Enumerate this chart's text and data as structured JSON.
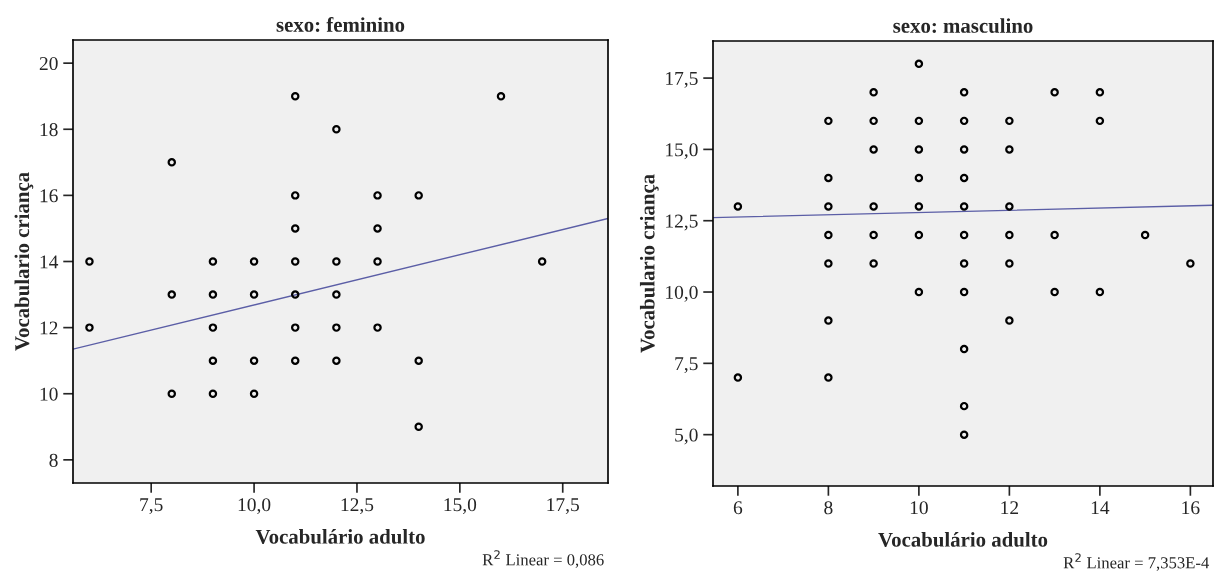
{
  "chart_data": [
    {
      "type": "scatter",
      "title": "sexo: feminino",
      "xlabel": "Vocabulário adulto",
      "ylabel": "Vocabulario criança",
      "annotations": [
        "R$^{2}$ Linear = 0,086"
      ],
      "grid": false,
      "xlim": [
        5.6,
        18.6
      ],
      "ylim": [
        7.3,
        20.7
      ],
      "xticks": [
        {
          "value": 7.5,
          "label": "7,5"
        },
        {
          "value": 10,
          "label": "10,0"
        },
        {
          "value": 12.5,
          "label": "12,5"
        },
        {
          "value": 15,
          "label": "15,0"
        },
        {
          "value": 17.5,
          "label": "17,5"
        }
      ],
      "yticks": [
        8,
        10,
        12,
        14,
        16,
        18,
        20
      ],
      "series": [
        {
          "marker": "circle",
          "color": "#000000",
          "x": [
            6,
            6,
            8,
            8,
            8,
            9,
            9,
            9,
            9,
            9,
            10,
            10,
            10,
            10,
            11,
            11,
            11,
            11,
            11,
            11,
            11,
            12,
            12,
            12,
            12,
            12,
            13,
            13,
            13,
            13,
            14,
            14,
            14,
            16,
            17
          ],
          "values": [
            14,
            12,
            17,
            13,
            10,
            14,
            13,
            12,
            11,
            10,
            14,
            13,
            11,
            10,
            19,
            16,
            15,
            14,
            13,
            12,
            11,
            18,
            14,
            13,
            12,
            11,
            16,
            15,
            14,
            12,
            16,
            11,
            9,
            19,
            14
          ]
        },
        {
          "type": "line",
          "color": "#5b5ea6",
          "x": [
            5.6,
            18.6
          ],
          "values": [
            11.35,
            15.3
          ]
        }
      ]
    },
    {
      "type": "scatter",
      "title": "sexo: masculino",
      "xlabel": "Vocabulário adulto",
      "ylabel": "Vocabulario criança",
      "annotations": [
        "R$^{2}$ Linear = 7,353E-4"
      ],
      "grid": false,
      "xlim": [
        5.45,
        16.5
      ],
      "ylim": [
        3.2,
        18.8
      ],
      "xticks": [
        6,
        8,
        10,
        12,
        14,
        16
      ],
      "yticks": [
        {
          "value": 5,
          "label": "5,0"
        },
        {
          "value": 7.5,
          "label": "7,5"
        },
        {
          "value": 10,
          "label": "10,0"
        },
        {
          "value": 12.5,
          "label": "12,5"
        },
        {
          "value": 15,
          "label": "15,0"
        },
        {
          "value": 17.5,
          "label": "17,5"
        }
      ],
      "series": [
        {
          "marker": "circle",
          "color": "#000000",
          "x": [
            6,
            6,
            8,
            8,
            8,
            8,
            8,
            8,
            8,
            9,
            9,
            9,
            9,
            9,
            9,
            10,
            10,
            10,
            10,
            10,
            10,
            10,
            11,
            11,
            11,
            11,
            11,
            11,
            11,
            11,
            11,
            11,
            11,
            12,
            12,
            12,
            12,
            12,
            12,
            13,
            13,
            13,
            14,
            14,
            14,
            15,
            16
          ],
          "values": [
            13,
            7,
            16,
            14,
            13,
            12,
            11,
            9,
            7,
            17,
            16,
            15,
            13,
            12,
            11,
            18,
            16,
            15,
            14,
            13,
            12,
            10,
            17,
            16,
            15,
            14,
            13,
            12,
            11,
            10,
            8,
            6,
            5,
            16,
            15,
            13,
            12,
            11,
            9,
            17,
            12,
            10,
            17,
            16,
            10,
            12,
            11
          ]
        },
        {
          "type": "line",
          "color": "#5b5ea6",
          "x": [
            5.45,
            16.5
          ],
          "values": [
            12.61,
            13.04
          ]
        }
      ]
    }
  ]
}
